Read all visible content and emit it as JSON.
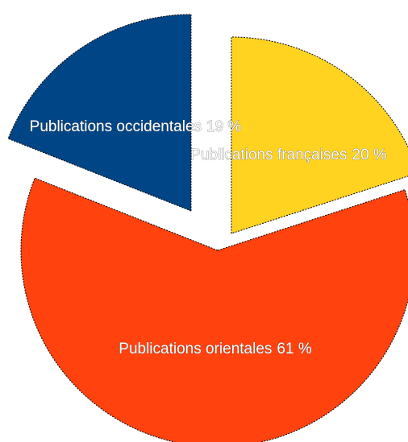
{
  "chart_data": {
    "type": "pie",
    "categories": [
      "Publications françaises",
      "Publications orientales",
      "Publications occidentales"
    ],
    "values": [
      20,
      61,
      19
    ],
    "value_labels": [
      "20 %",
      "61 %",
      "19 %"
    ],
    "colors": [
      "#ffd320",
      "#ff420e",
      "#004586"
    ]
  }
}
